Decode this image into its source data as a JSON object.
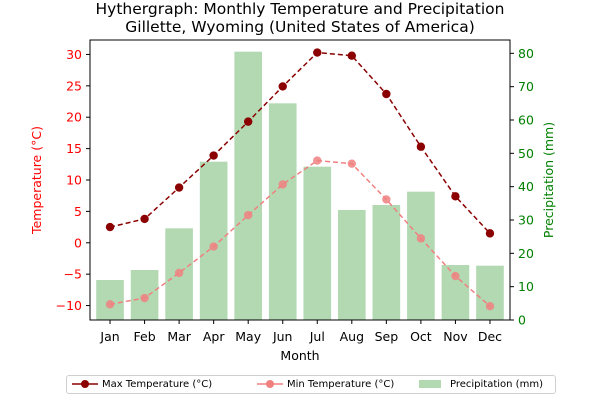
{
  "chart_data": {
    "type": "bar+line",
    "title_line1": "Hythergraph: Monthly Temperature and Precipitation",
    "title_line2": "Gillette, Wyoming (United States of America)",
    "xlabel": "Month",
    "ylabel_left": "Temperature (°C)",
    "ylabel_right": "Precipitation (mm)",
    "categories": [
      "Jan",
      "Feb",
      "Mar",
      "Apr",
      "May",
      "Jun",
      "Jul",
      "Aug",
      "Sep",
      "Oct",
      "Nov",
      "Dec"
    ],
    "ylim_left": [
      -12.3,
      32.3
    ],
    "ylim_right": [
      0,
      84
    ],
    "yticks_left": [
      -10,
      -5,
      0,
      5,
      10,
      15,
      20,
      25,
      30
    ],
    "yticks_right": [
      0,
      10,
      20,
      30,
      40,
      50,
      60,
      70,
      80
    ],
    "series": [
      {
        "name": "Max Temperature (°C)",
        "axis": "left",
        "kind": "line",
        "color": "#8b0000",
        "values": [
          2.5,
          3.8,
          8.8,
          13.9,
          19.3,
          24.9,
          30.3,
          29.8,
          23.7,
          15.3,
          7.4,
          1.5
        ]
      },
      {
        "name": "Min Temperature (°C)",
        "axis": "left",
        "kind": "line",
        "color": "#f08080",
        "values": [
          -9.8,
          -8.8,
          -4.8,
          -0.6,
          4.4,
          9.3,
          13.1,
          12.6,
          6.9,
          0.7,
          -5.3,
          -10.1
        ]
      },
      {
        "name": "Precipitation (mm)",
        "axis": "right",
        "kind": "bar",
        "color": "#b2d9b2",
        "values": [
          12,
          15,
          27.5,
          47.5,
          80.5,
          65,
          46,
          33,
          34.5,
          38.5,
          16.5,
          16.3
        ]
      }
    ],
    "legend_position": "bottom-center",
    "left_axis_color": "#ff0000",
    "right_axis_color": "#008000"
  }
}
